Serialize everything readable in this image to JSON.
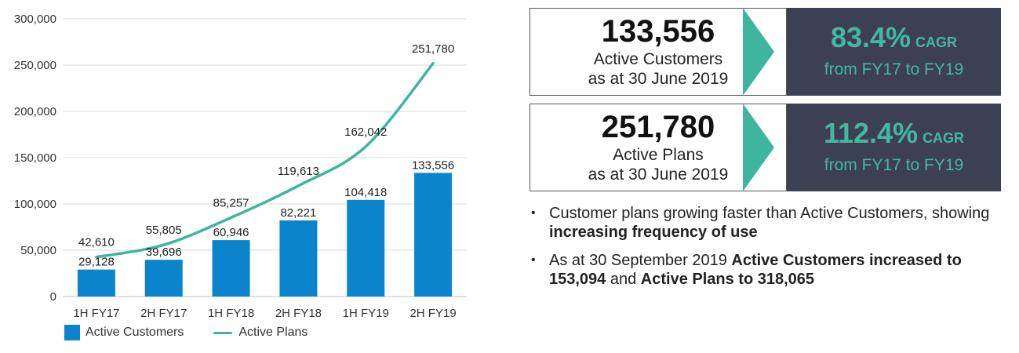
{
  "chart_data": {
    "type": "bar+line",
    "categories": [
      "1H FY17",
      "2H FY17",
      "1H FY18",
      "2H FY18",
      "1H FY19",
      "2H FY19"
    ],
    "series": [
      {
        "name": "Active Customers",
        "type": "bar",
        "values": [
          29128,
          39696,
          60946,
          82221,
          104418,
          133556
        ],
        "labels": [
          "29,128",
          "39,696",
          "60,946",
          "82,221",
          "104,418",
          "133,556"
        ]
      },
      {
        "name": "Active Plans",
        "type": "line",
        "values": [
          42610,
          55805,
          85257,
          119613,
          162042,
          251780
        ],
        "labels": [
          "42,610",
          "55,805",
          "85,257",
          "119,613",
          "162,042",
          "251,780"
        ]
      }
    ],
    "yticks": [
      0,
      50000,
      100000,
      150000,
      200000,
      250000,
      300000
    ],
    "ytick_labels": [
      "0",
      "50,000",
      "100,000",
      "150,000",
      "200,000",
      "250,000",
      "300,000"
    ],
    "ylim": [
      0,
      300000
    ],
    "grid": true,
    "legend_position": "bottom-left",
    "colors": {
      "bar": "#0a85cd",
      "line": "#3fb59e",
      "grid": "#d9d9d9"
    }
  },
  "kpis": [
    {
      "value": "133,556",
      "label1": "Active Customers",
      "label2": "as at 30 June 2019",
      "pct": "83.4%",
      "cagr": "CAGR",
      "from": "from FY17 to FY19"
    },
    {
      "value": "251,780",
      "label1": "Active Plans",
      "label2": "as at 30 June 2019",
      "pct": "112.4%",
      "cagr": "CAGR",
      "from": "from FY17 to FY19"
    }
  ],
  "bullets": [
    {
      "parts": [
        {
          "t": "Customer plans growing faster than Active Customers, showing ",
          "b": false
        },
        {
          "t": "increasing frequency of use",
          "b": true
        }
      ]
    },
    {
      "parts": [
        {
          "t": "As at 30 September 2019 ",
          "b": false
        },
        {
          "t": "Active Customers increased to 153,094",
          "b": true
        },
        {
          "t": " and ",
          "b": false
        },
        {
          "t": "Active Plans to 318,065",
          "b": true
        }
      ]
    }
  ],
  "colors": {
    "accent": "#3fb59e",
    "dark_panel": "#3d4054"
  }
}
